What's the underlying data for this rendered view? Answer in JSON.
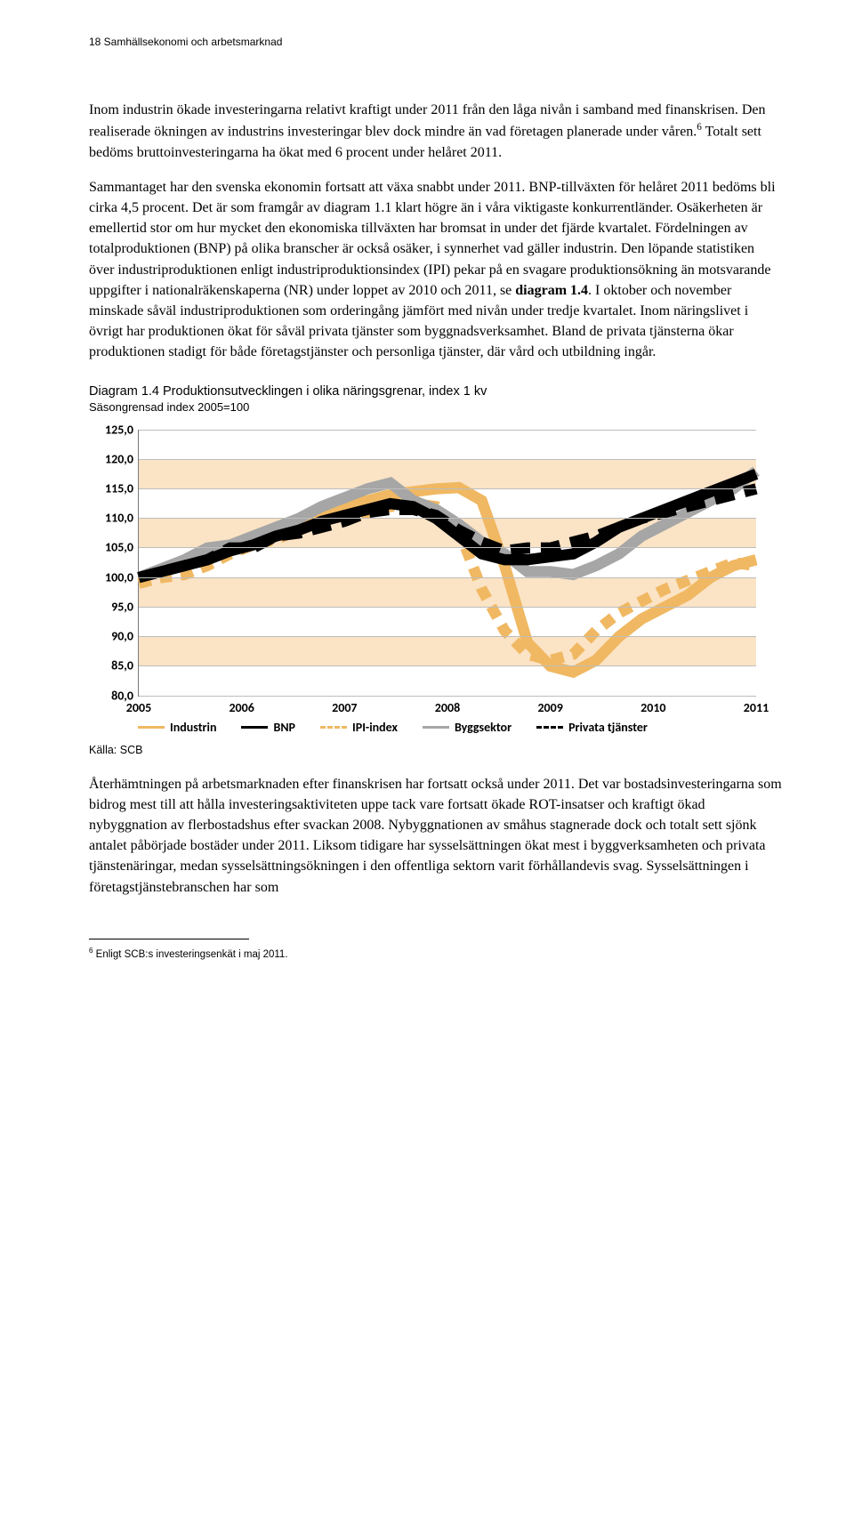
{
  "header": {
    "text": "18  Samhällsekonomi och arbetsmarknad"
  },
  "para1": "Inom industrin ökade investeringarna relativt kraftigt under 2011 från den låga nivån i samband med finanskrisen. Den realiserade ökningen av industrins investeringar blev dock mindre än vad företagen planerade under våren.",
  "para1_sup": "6",
  "para1_tail": " Totalt sett bedöms bruttoinvesteringarna ha ökat med 6 procent under helåret 2011.",
  "para2_a": "Sammantaget har den svenska ekonomin fortsatt att växa snabbt under 2011. BNP-tillväxten för helåret 2011 bedöms bli cirka 4,5 procent. Det är som framgår av diagram 1.1 klart högre än i våra viktigaste konkurrentländer. Osäkerheten är emellertid stor om hur mycket den ekonomiska tillväxten har bromsat in under det fjärde kvartalet. Fördelningen av totalproduktionen (BNP) på olika branscher är också osäker, i synnerhet vad gäller industrin. Den löpande statistiken över industriproduktionen enligt industriproduktionsindex (IPI) pekar på en svagare produktionsökning än motsvarande uppgifter i nationalräkenskaperna (NR) under loppet av 2010 och 2011, se ",
  "para2_bold": "diagram 1.4",
  "para2_b": ". I oktober och november minskade såväl industriproduktionen som orderingång jämfört med nivån under tredje kvartalet. Inom näringslivet i övrigt har produktionen ökat för såväl privata tjänster som byggnadsverksamhet. Bland de privata tjänsterna ökar produktionen stadigt för både företagstjänster och personliga tjänster, där vård och utbildning ingår.",
  "diagram": {
    "title": "Diagram 1.4 Produktionsutvecklingen i olika näringsgrenar, index 1 kv",
    "subtitle": "Säsongrensad index 2005=100",
    "ylim": [
      80,
      125
    ],
    "ytick_step": 5,
    "yticks": [
      80,
      85,
      90,
      95,
      100,
      105,
      110,
      115,
      120,
      125
    ],
    "xlim": [
      "2005",
      "2011"
    ],
    "xticks": [
      "2005",
      "2006",
      "2007",
      "2008",
      "2009",
      "2010",
      "2011"
    ],
    "band_color": "#fbe3c5",
    "grid_color": "#bdbdbd",
    "background_color": "#ffffff",
    "line_width": 2.5,
    "series": {
      "industrin": {
        "label": "Industrin",
        "color": "#f0b862",
        "dash": "solid",
        "values": [
          100,
          101,
          102.5,
          104,
          105,
          106,
          107.5,
          109,
          111,
          112,
          113,
          114,
          114.5,
          115,
          115.2,
          113,
          102,
          89,
          85,
          84,
          86,
          90,
          93,
          95,
          97,
          100,
          102,
          103
        ]
      },
      "bnp": {
        "label": "BNP",
        "color": "#000000",
        "dash": "solid",
        "values": [
          100,
          101,
          102,
          103,
          104.5,
          105.5,
          107,
          108,
          109.5,
          110.5,
          111.5,
          112.5,
          112,
          110,
          107,
          104,
          103,
          103,
          103.5,
          104,
          106,
          108.5,
          110,
          111.5,
          113,
          114.5,
          116,
          117.5
        ]
      },
      "ipi": {
        "label": "IPI-index",
        "color": "#f0b862",
        "dash": "dashed",
        "values": [
          99,
          100,
          100.5,
          102,
          104,
          105.5,
          106.5,
          108,
          110,
          110.5,
          111,
          112,
          112.5,
          112,
          108,
          98,
          91,
          87,
          86,
          87,
          91,
          94,
          96,
          98,
          99.5,
          101,
          102.5,
          102
        ]
      },
      "bygg": {
        "label": "Byggsektor",
        "color": "#a6a6a6",
        "dash": "solid",
        "values": [
          100,
          101.5,
          103,
          105,
          105.5,
          107,
          108.5,
          110,
          112,
          113.5,
          115,
          116,
          113,
          111.5,
          109,
          106,
          104,
          101,
          101,
          100.5,
          102,
          104,
          107,
          109,
          111,
          113,
          115,
          118
        ]
      },
      "privat": {
        "label": "Privata tjänster",
        "color": "#000000",
        "dash": "longdash",
        "values": [
          100,
          101,
          102,
          103,
          105,
          105,
          107,
          107.5,
          108.5,
          109.5,
          111,
          111.5,
          111.5,
          110.5,
          108,
          106,
          104.5,
          105,
          105,
          106,
          107,
          108.5,
          110,
          111,
          112,
          113,
          114,
          115
        ]
      }
    },
    "legend_order": [
      "industrin",
      "bnp",
      "ipi",
      "bygg",
      "privat"
    ]
  },
  "source": "Källa: SCB",
  "para3": "Återhämtningen på arbetsmarknaden efter finanskrisen har fortsatt också under 2011. Det var bostadsinvesteringarna som bidrog mest till att hålla investeringsaktiviteten uppe tack vare fortsatt ökade ROT-insatser och kraftigt ökad nybyggnation av flerbostadshus efter svackan 2008. Nybyggnationen av småhus stagnerade dock och totalt sett sjönk antalet påbörjade bostäder under 2011. Liksom tidigare har sysselsättningen ökat mest i byggverksamheten och privata tjänstenäringar, medan sysselsättningsökningen i den offentliga sektorn varit förhållandevis svag. Sysselsättningen i företagstjänstebranschen har som",
  "footnote": {
    "num": "6",
    "text": " Enligt SCB:s  investeringsenkät i maj 2011."
  }
}
